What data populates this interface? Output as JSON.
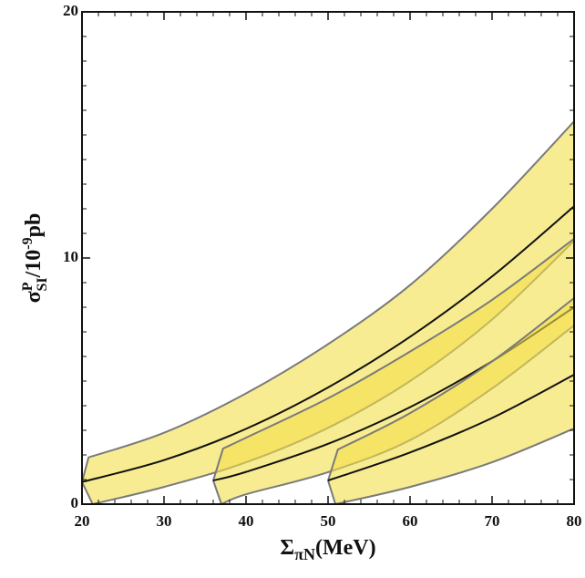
{
  "chart_data": {
    "type": "band",
    "xlabel": [
      "Σ",
      "πN",
      "(MeV)"
    ],
    "ylabel": [
      "σ",
      "P",
      "SI",
      "/10",
      "-9",
      "pb"
    ],
    "xlim": [
      20,
      80
    ],
    "ylim": [
      0,
      20
    ],
    "xticks": [
      20,
      30,
      40,
      50,
      60,
      70,
      80
    ],
    "yticks": [
      0,
      10,
      20
    ],
    "x_minor_ticks": [
      22,
      24,
      26,
      28,
      32,
      34,
      36,
      38,
      42,
      44,
      46,
      48,
      52,
      54,
      56,
      58,
      62,
      64,
      66,
      68,
      72,
      74,
      76,
      78
    ],
    "y_minor_ticks": [
      1,
      2,
      3,
      4,
      5,
      6,
      7,
      8,
      9,
      11,
      12,
      13,
      14,
      15,
      16,
      17,
      18,
      19
    ],
    "fill_color": "#f3e04a",
    "edge_color": "#7a7a7a",
    "line_color": "#111111",
    "bands": [
      {
        "x": [
          20,
          30,
          40,
          50,
          60,
          70,
          80
        ],
        "central": [
          0.9,
          1.79,
          3.06,
          4.74,
          6.8,
          9.25,
          12.1
        ],
        "upper_x": [
          20.8,
          30,
          40,
          50,
          60,
          70,
          80
        ],
        "upper": [
          1.9,
          2.9,
          4.5,
          6.5,
          8.9,
          12.0,
          15.55
        ],
        "lower_x": [
          21.3,
          30,
          40,
          50,
          60,
          70,
          80
        ],
        "lower": [
          0,
          0.7,
          1.7,
          3.1,
          5.0,
          7.5,
          10.7
        ]
      },
      {
        "x": [
          36,
          40,
          50,
          60,
          70,
          80
        ],
        "central": [
          0.96,
          1.31,
          2.45,
          3.94,
          5.8,
          8.0
        ],
        "upper_x": [
          37.2,
          40,
          50,
          60,
          70,
          80
        ],
        "upper": [
          2.26,
          2.7,
          4.3,
          6.2,
          8.3,
          10.78
        ],
        "lower_x": [
          37,
          40,
          50,
          60,
          70,
          80
        ],
        "lower": [
          0,
          0.4,
          1.3,
          2.6,
          4.7,
          7.26
        ]
      },
      {
        "x": [
          50,
          60,
          70,
          80
        ],
        "central": [
          0.96,
          2.1,
          3.5,
          5.26
        ],
        "upper_x": [
          51.2,
          60,
          70,
          80
        ],
        "upper": [
          2.22,
          3.7,
          5.8,
          8.37
        ],
        "lower_x": [
          50.9,
          60,
          70,
          80
        ],
        "lower": [
          0,
          0.7,
          1.7,
          3.07
        ]
      }
    ]
  }
}
